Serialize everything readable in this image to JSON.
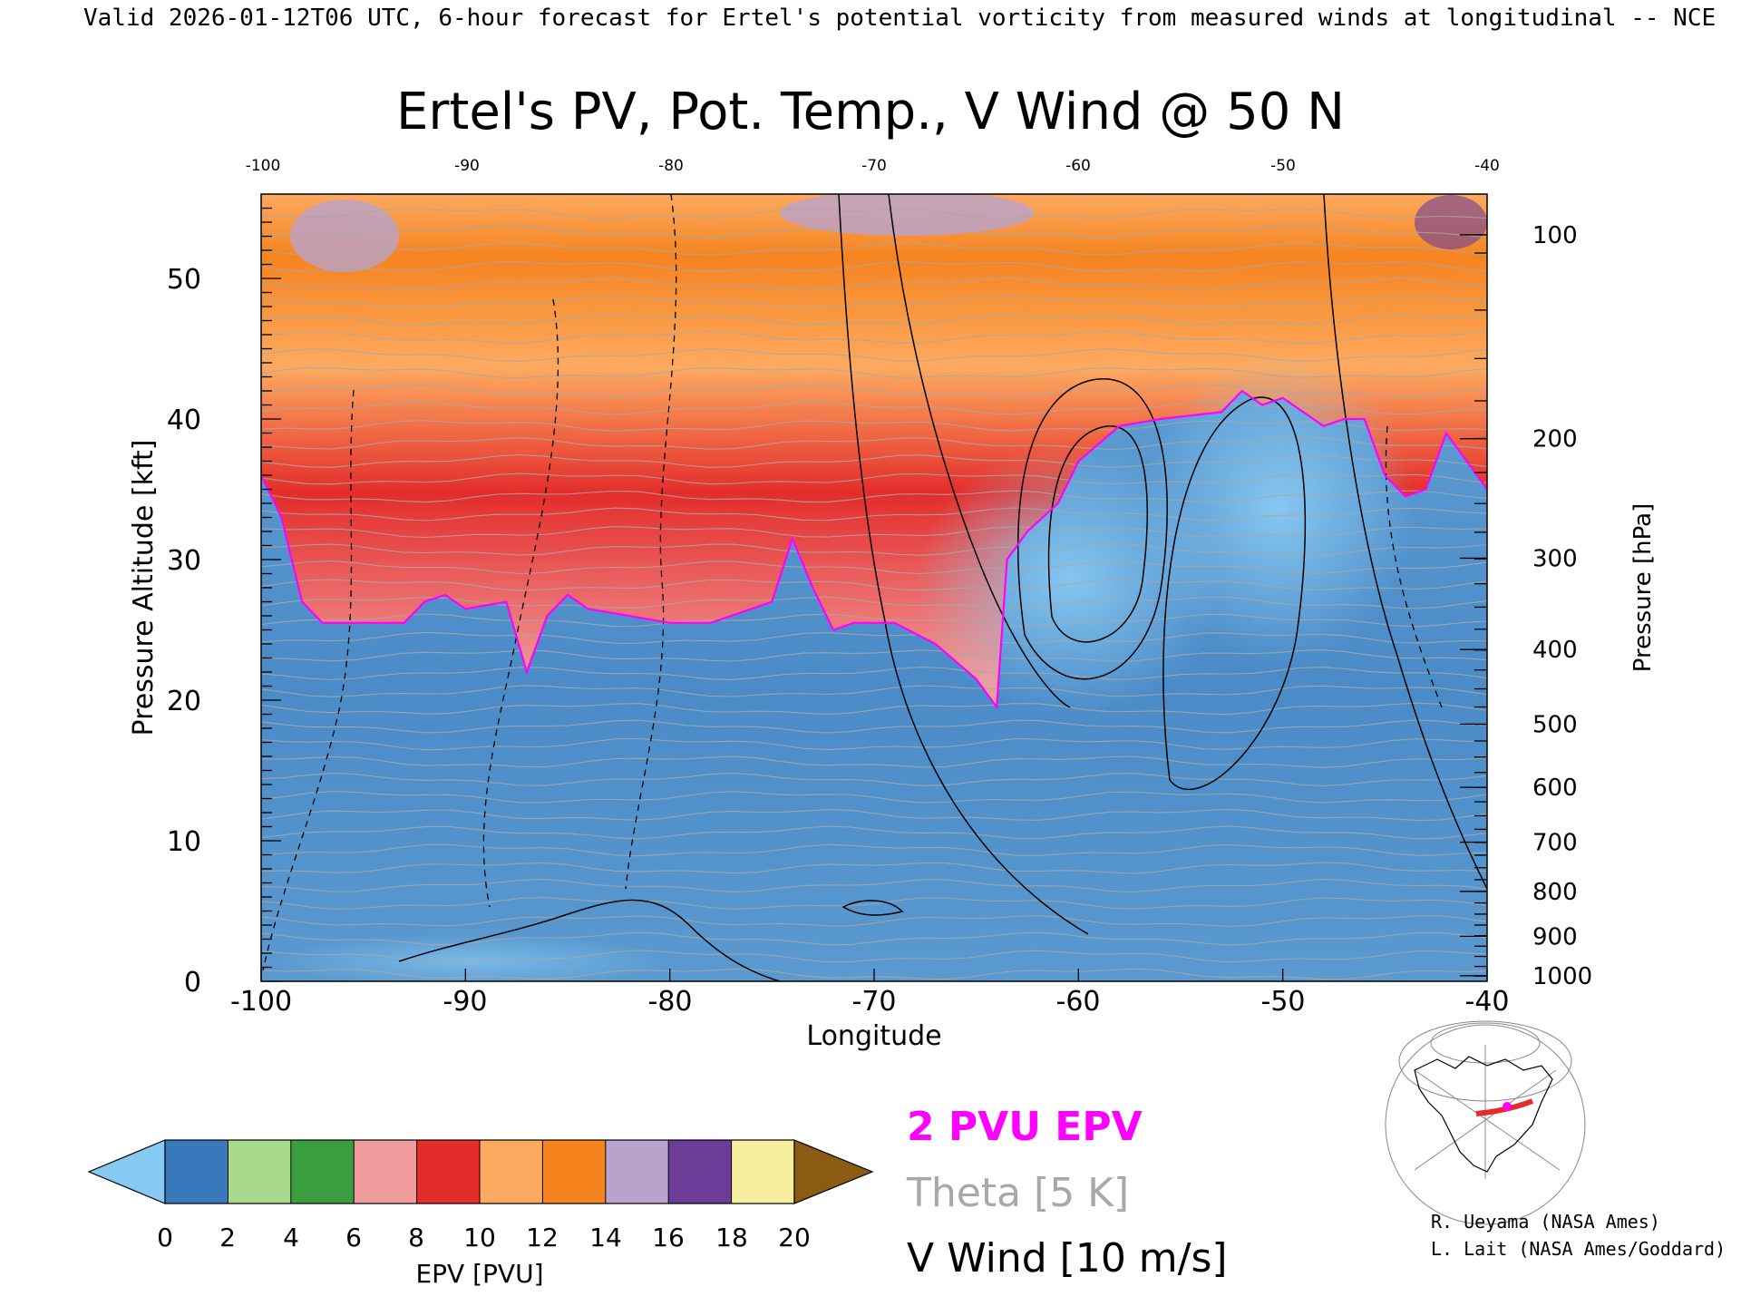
{
  "header": {
    "valid_line": "Valid 2026-01-12T06 UTC, 6-hour forecast for Ertel's potential vorticity from measured winds at longitudinal -- NCE"
  },
  "chart_data": {
    "type": "heatmap",
    "title": "Ertel's PV, Pot. Temp., V Wind @ 50 N",
    "xlabel": "Longitude",
    "ylabel_left": "Pressure Altitude [kft]",
    "ylabel_right": "Pressure [hPa]",
    "xlim": [
      -100,
      -40
    ],
    "ylim_kft": [
      0,
      56
    ],
    "x_ticks": [
      "-100",
      "-90",
      "-80",
      "-70",
      "-60",
      "-50",
      "-40"
    ],
    "top_ticks": [
      "-100",
      "-90",
      "-80",
      "-70",
      "-60",
      "-50",
      "-40"
    ],
    "y_ticks": [
      "0",
      "10",
      "20",
      "30",
      "40",
      "50"
    ],
    "y_tick_values": [
      0,
      10,
      20,
      30,
      40,
      50
    ],
    "pressure_ticks": [
      "100",
      "200",
      "300",
      "400",
      "500",
      "600",
      "700",
      "800",
      "900",
      "1000"
    ],
    "pressure_tick_kft": [
      53.1,
      38.6,
      30.1,
      23.6,
      18.3,
      13.8,
      9.9,
      6.4,
      3.2,
      0.4
    ],
    "tropopause_2pvu_kft": [
      [
        -100,
        36
      ],
      [
        -99,
        33
      ],
      [
        -98,
        27
      ],
      [
        -97,
        25.5
      ],
      [
        -95,
        25.5
      ],
      [
        -93,
        25.5
      ],
      [
        -92,
        27
      ],
      [
        -91,
        27.5
      ],
      [
        -90,
        26.5
      ],
      [
        -88,
        27
      ],
      [
        -87,
        22
      ],
      [
        -86,
        26
      ],
      [
        -85,
        27.5
      ],
      [
        -84,
        26.5
      ],
      [
        -82,
        26
      ],
      [
        -80,
        25.5
      ],
      [
        -78,
        25.5
      ],
      [
        -76,
        26.5
      ],
      [
        -75,
        27
      ],
      [
        -74,
        31.5
      ],
      [
        -73,
        28
      ],
      [
        -72,
        25
      ],
      [
        -71,
        25.5
      ],
      [
        -69,
        25.5
      ],
      [
        -67,
        24
      ],
      [
        -65,
        21.5
      ],
      [
        -64,
        19.5
      ],
      [
        -63.5,
        30
      ],
      [
        -62.5,
        32
      ],
      [
        -61,
        34
      ],
      [
        -60,
        37
      ],
      [
        -58,
        39.5
      ],
      [
        -56,
        40
      ],
      [
        -53,
        40.5
      ],
      [
        -52,
        42
      ],
      [
        -51,
        41
      ],
      [
        -50,
        41.5
      ],
      [
        -48,
        39.5
      ],
      [
        -47,
        40
      ],
      [
        -46,
        40
      ],
      [
        -45,
        36
      ],
      [
        -44,
        34.5
      ],
      [
        -43,
        35
      ],
      [
        -42,
        39
      ],
      [
        -41,
        37
      ],
      [
        -40,
        35
      ]
    ],
    "colorbar": {
      "label": "EPV [PVU]",
      "ticks": [
        "0",
        "2",
        "4",
        "6",
        "8",
        "10",
        "12",
        "14",
        "16",
        "18",
        "20"
      ],
      "colors": [
        "#86c9f2",
        "#3a78bc",
        "#a9d98b",
        "#3b9e3e",
        "#f09c9c",
        "#e42d2b",
        "#fdaa60",
        "#f5841f",
        "#b9a3cc",
        "#6b3d98",
        "#f7ee9d",
        "#8b5a13"
      ]
    },
    "legend": {
      "epv": "2 PVU EPV",
      "theta": "Theta [5 K]",
      "vwind": "V Wind [10 m/s]",
      "epv_color": "#ff00ff",
      "theta_color": "#a8a8a8",
      "vwind_color": "#000000"
    }
  },
  "credits": {
    "line1": "R. Ueyama (NASA Ames)",
    "line2": "L. Lait (NASA Ames/Goddard)"
  }
}
